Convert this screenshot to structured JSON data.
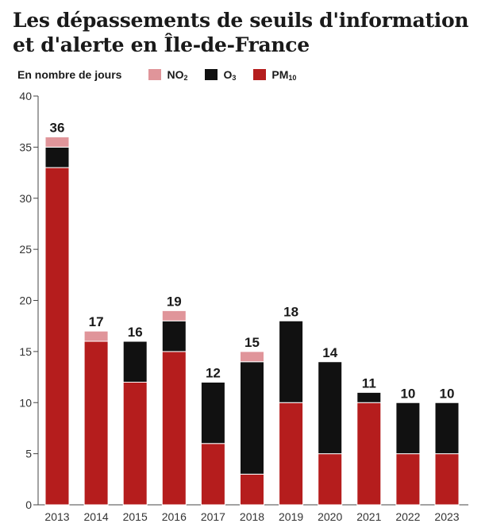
{
  "chart_data": {
    "type": "bar",
    "stacked": true,
    "title": "Les dépassements de seuils d'information et d'alerte en Île-de-France",
    "ylabel": "En nombre de jours",
    "ylim": [
      0,
      40
    ],
    "yticks": [
      0,
      5,
      10,
      15,
      20,
      25,
      30,
      35,
      40
    ],
    "categories": [
      "2013",
      "2014",
      "2015",
      "2016",
      "2017",
      "2018",
      "2019",
      "2020",
      "2021",
      "2022",
      "2023"
    ],
    "series": [
      {
        "name": "PM",
        "name_sub": "10",
        "color": "#b51d1d",
        "values": [
          33,
          16,
          12,
          15,
          6,
          3,
          10,
          5,
          10,
          5,
          5
        ]
      },
      {
        "name": "O",
        "name_sub": "3",
        "color": "#111111",
        "values": [
          2,
          0,
          4,
          3,
          6,
          11,
          8,
          9,
          1,
          5,
          5
        ]
      },
      {
        "name": "NO",
        "name_sub": "2",
        "color": "#e0959a",
        "values": [
          1,
          1,
          0,
          1,
          0,
          1,
          0,
          0,
          0,
          0,
          0
        ]
      }
    ],
    "totals": [
      36,
      17,
      16,
      19,
      12,
      15,
      18,
      14,
      11,
      10,
      10
    ],
    "grid": false,
    "legend": "top-left"
  }
}
